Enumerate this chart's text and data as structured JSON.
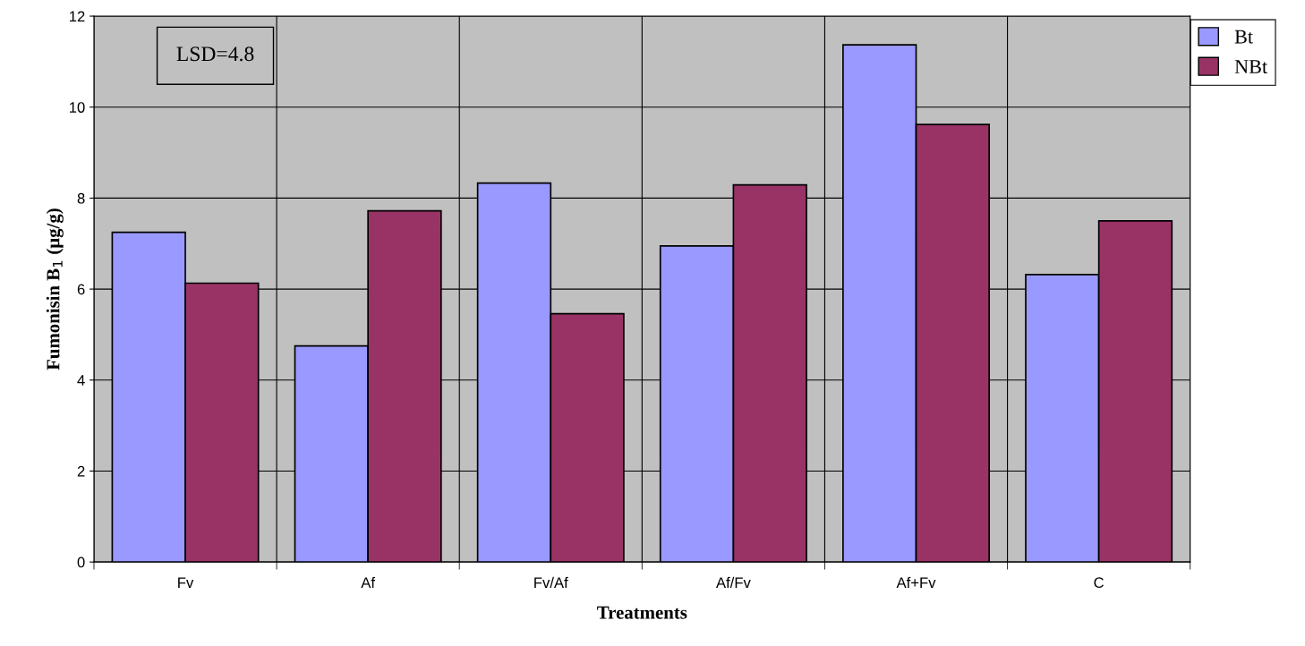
{
  "chart_data": {
    "type": "bar",
    "xlabel": "Treatments",
    "ylabel": "Fumonisin B$_{1}$ (μg/g)",
    "categories": [
      "Fv",
      "Af",
      "Fv/Af",
      "Af/Fv",
      "Af+Fv",
      "C"
    ],
    "series": [
      {
        "name": "Bt",
        "color": "#9999ff",
        "values": [
          7.25,
          4.75,
          8.33,
          6.95,
          11.37,
          6.32
        ]
      },
      {
        "name": "NBt",
        "color": "#993366",
        "values": [
          6.13,
          7.72,
          5.46,
          8.29,
          9.62,
          7.5
        ]
      }
    ],
    "ylim": [
      0,
      12
    ],
    "yticks": [
      0,
      2,
      4,
      6,
      8,
      10,
      12
    ],
    "grid": true,
    "legend": "top right",
    "annotations": [
      "LSD=4.8"
    ]
  }
}
